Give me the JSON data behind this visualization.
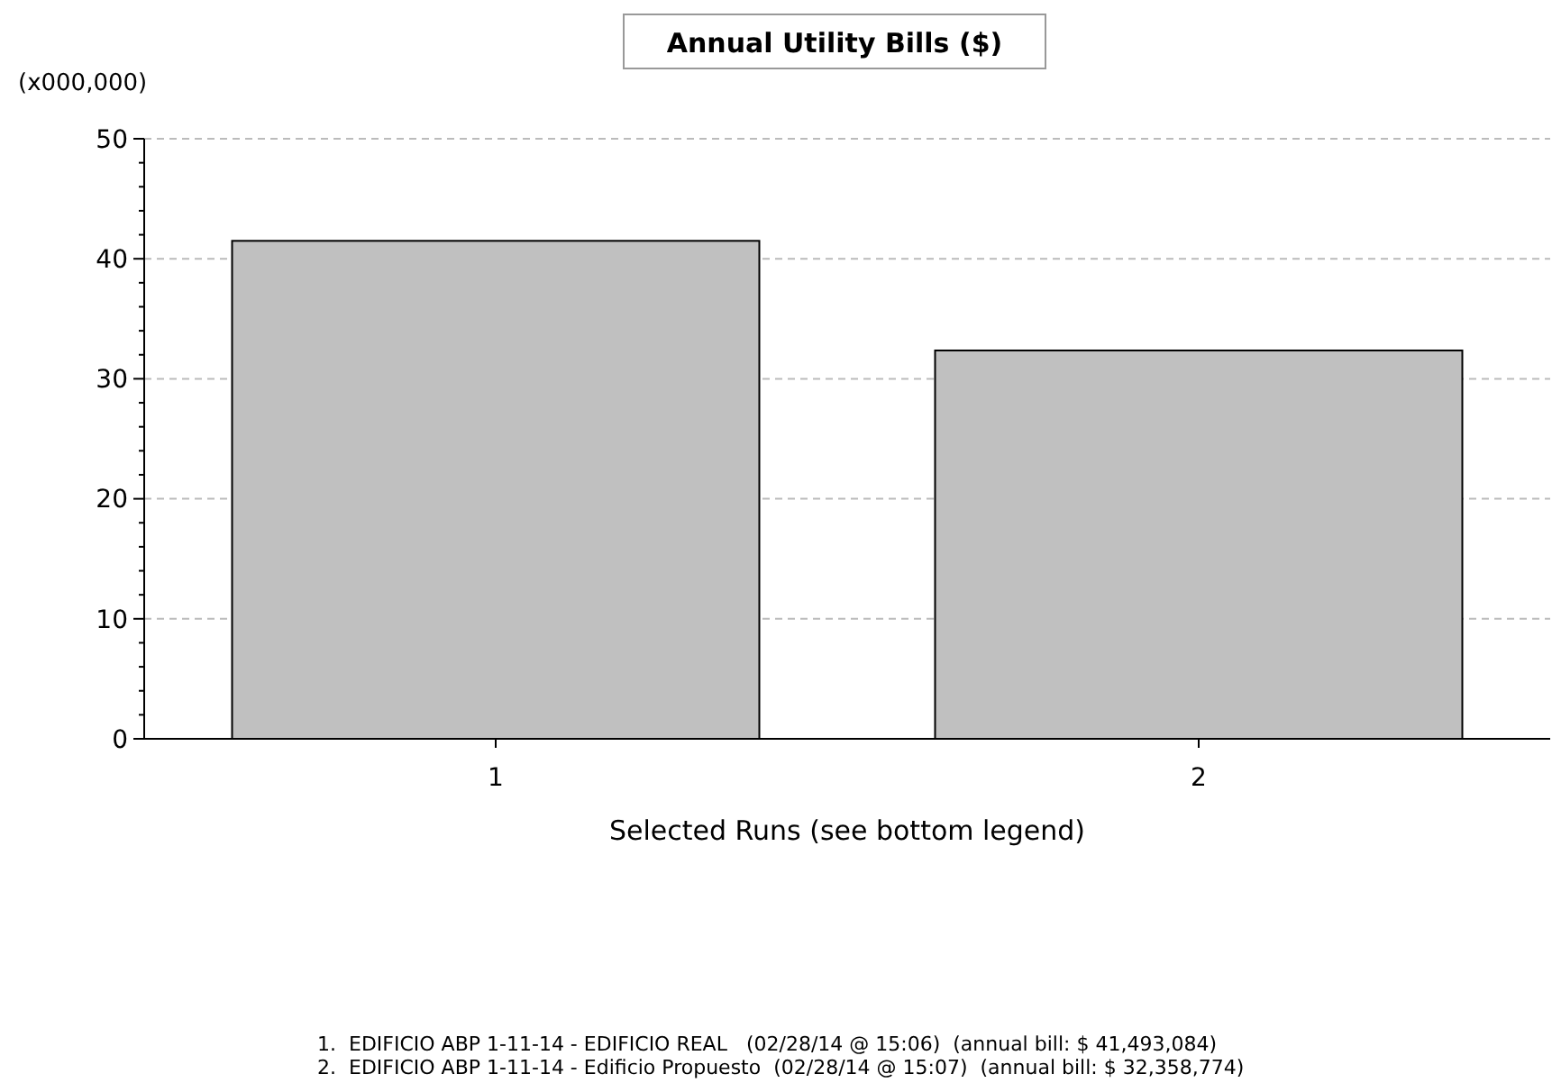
{
  "chart_data": {
    "type": "bar",
    "title": "Annual Utility Bills ($)",
    "ylabel": "(x000,000)",
    "xlabel": "Selected Runs (see bottom legend)",
    "categories": [
      "1",
      "2"
    ],
    "series": [
      {
        "color": "#c0c0c0",
        "values": [
          41.493084,
          32.358774
        ]
      }
    ],
    "ylim": [
      0,
      50
    ],
    "yticks": [
      0,
      {
        "value": 2,
        "label": null
      },
      {
        "value": 4,
        "label": null
      },
      {
        "value": 6,
        "label": null
      },
      {
        "value": 8,
        "label": null
      },
      10,
      {
        "value": 12,
        "label": null
      },
      {
        "value": 14,
        "label": null
      },
      {
        "value": 16,
        "label": null
      },
      {
        "value": 18,
        "label": null
      },
      20,
      {
        "value": 22,
        "label": null
      },
      {
        "value": 24,
        "label": null
      },
      {
        "value": 26,
        "label": null
      },
      {
        "value": 28,
        "label": null
      },
      30,
      {
        "value": 32,
        "label": null
      },
      {
        "value": 34,
        "label": null
      },
      {
        "value": 36,
        "label": null
      },
      {
        "value": 38,
        "label": null
      },
      40,
      {
        "value": 42,
        "label": null
      },
      {
        "value": 44,
        "label": null
      },
      {
        "value": 46,
        "label": null
      },
      {
        "value": 48,
        "label": null
      },
      50
    ],
    "grid": "y",
    "annotations": [
      "1.  EDIFICIO ABP 1-11-14 - EDIFICIO REAL   (02/28/14 @ 15:06)  (annual bill: $ 41,493,084)",
      "2.  EDIFICIO ABP 1-11-14 - Edificio Propuesto  (02/28/14 @ 15:07)  (annual bill: $ 32,358,774)"
    ]
  }
}
